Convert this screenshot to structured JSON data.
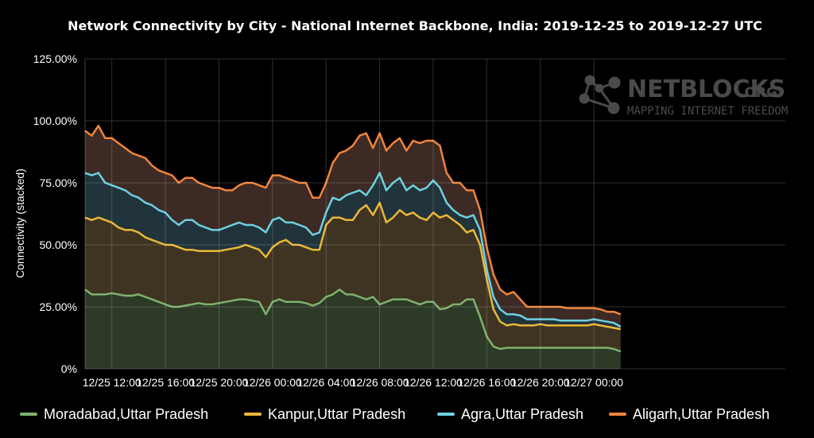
{
  "chart_data": {
    "type": "area",
    "stacked": true,
    "title": "Network Connectivity by City - National Internet Backbone, India: 2019-12-25 to 2019-12-27 UTC",
    "ylabel": "Connectivity (stacked)",
    "ylim": [
      0,
      125
    ],
    "y_ticks": [
      {
        "value": 0,
        "label": "0%"
      },
      {
        "value": 25,
        "label": "25.00%"
      },
      {
        "value": 50,
        "label": "50.00%"
      },
      {
        "value": 75,
        "label": "75.00%"
      },
      {
        "value": 100,
        "label": "100.00%"
      },
      {
        "value": 125,
        "label": "125.00%"
      }
    ],
    "x_unit": "hours since first sample (12/25 10:00 UTC)",
    "xlim": [
      0,
      52.3
    ],
    "x_ticks": [
      {
        "hour": 2,
        "label": "12/25 12:00"
      },
      {
        "hour": 6,
        "label": "12/25 16:00"
      },
      {
        "hour": 10,
        "label": "12/25 20:00"
      },
      {
        "hour": 14,
        "label": "12/26 00:00"
      },
      {
        "hour": 18,
        "label": "12/26 04:00"
      },
      {
        "hour": 22,
        "label": "12/26 08:00"
      },
      {
        "hour": 26,
        "label": "12/26 12:00"
      },
      {
        "hour": 30,
        "label": "12/26 16:00"
      },
      {
        "hour": 34,
        "label": "12/26 20:00"
      },
      {
        "hour": 38,
        "label": "12/27 00:00"
      }
    ],
    "grid": true,
    "legend_position": "bottom",
    "x": [
      0,
      0.5,
      1,
      1.5,
      2,
      2.5,
      3,
      3.5,
      4,
      4.5,
      5,
      5.5,
      6,
      6.5,
      7,
      7.5,
      8,
      8.5,
      9,
      9.5,
      10,
      10.5,
      11,
      11.5,
      12,
      12.5,
      13,
      13.5,
      14,
      14.5,
      15,
      15.5,
      16,
      16.5,
      17,
      17.5,
      18,
      18.5,
      19,
      19.5,
      20,
      20.5,
      21,
      21.5,
      22,
      22.5,
      23,
      23.5,
      24,
      24.5,
      25,
      25.5,
      26,
      26.5,
      27,
      27.5,
      28,
      28.5,
      29,
      29.5,
      30,
      30.5,
      31,
      31.5,
      32,
      32.5,
      33,
      33.5,
      34,
      34.5,
      35,
      35.5,
      36,
      36.5,
      37,
      37.5,
      38,
      38.5,
      39,
      39.5,
      40
    ],
    "series": [
      {
        "name": "Moradabad,Uttar Pradesh",
        "color": "#7eb26d",
        "fill": "#2c3a27",
        "cumulative": [
          32,
          30,
          30,
          30,
          30.5,
          30,
          29.5,
          29.5,
          30,
          29,
          28,
          27,
          26,
          25,
          25,
          25.5,
          26,
          26.5,
          26,
          26,
          26.5,
          27,
          27.5,
          28,
          28,
          27.5,
          27,
          22,
          27,
          28,
          27,
          27,
          27,
          26.5,
          25.5,
          26.5,
          29,
          30,
          32,
          30,
          30,
          29,
          28,
          29,
          26,
          27,
          28,
          28,
          28,
          27,
          26,
          27,
          27,
          24,
          24.5,
          26,
          26,
          28,
          28,
          21,
          13,
          9,
          8,
          8.5,
          8.5,
          8.5,
          8.5,
          8.5,
          8.5,
          8.5,
          8.5,
          8.5,
          8.5,
          8.5,
          8.5,
          8.5,
          8.5,
          8.5,
          8.5,
          8,
          7
        ]
      },
      {
        "name": "Kanpur,Uttar Pradesh",
        "color": "#eab839",
        "fill": "#3f3322",
        "cumulative": [
          61,
          60,
          61,
          60,
          59,
          57,
          56,
          56,
          55,
          53,
          52,
          51,
          50,
          50,
          49,
          48,
          48,
          47.5,
          47.5,
          47.5,
          47.5,
          48,
          48.5,
          49,
          50,
          49,
          48,
          45,
          49,
          51,
          52,
          50,
          50,
          49,
          48,
          48,
          58,
          61,
          61,
          60,
          60,
          64,
          66,
          62,
          67,
          59,
          61,
          64,
          62,
          63,
          61,
          60,
          63,
          61,
          62,
          60,
          58,
          55,
          56,
          50,
          36,
          24,
          19,
          17.5,
          18,
          17.5,
          17.5,
          17.5,
          18,
          17.5,
          17.5,
          17.5,
          17.5,
          17.5,
          17.5,
          17.5,
          18,
          17.5,
          17,
          16.5,
          16
        ]
      },
      {
        "name": "Agra,Uttar Pradesh",
        "color": "#6ed0e0",
        "fill": "#21333b",
        "cumulative": [
          79,
          78,
          79,
          75,
          74,
          73,
          72,
          70,
          69,
          67,
          66,
          64,
          63,
          60,
          58,
          60,
          60,
          58,
          57,
          56,
          56,
          57,
          58,
          59,
          58,
          58,
          57,
          55,
          60,
          61,
          59,
          59,
          58,
          57,
          54,
          55,
          63,
          69,
          68,
          70,
          71,
          72,
          70,
          74,
          79,
          72,
          75,
          77,
          72,
          74,
          72,
          73,
          76,
          73,
          67,
          64,
          62,
          61,
          62,
          56,
          40,
          29,
          24,
          22,
          22,
          21.5,
          20,
          20,
          20,
          20,
          20,
          19.5,
          19.5,
          19.5,
          19.5,
          19.5,
          20,
          19.5,
          19,
          18.5,
          17
        ]
      },
      {
        "name": "Aligarh,Uttar Pradesh",
        "color": "#ef843c",
        "fill": "#3d2a24",
        "cumulative": [
          96,
          94,
          98,
          93,
          93,
          91,
          89,
          87,
          86,
          85,
          82,
          80,
          79,
          78,
          75,
          77,
          77,
          75,
          74,
          73,
          73,
          72,
          72,
          74,
          75,
          75,
          74,
          73,
          78,
          78,
          77,
          76,
          75,
          75,
          69,
          69,
          75,
          83,
          87,
          88,
          90,
          94,
          95,
          89,
          95,
          88,
          91,
          93,
          88,
          92,
          91,
          92,
          92,
          90,
          79,
          75,
          75,
          72,
          72,
          64,
          49,
          38,
          32,
          30,
          31,
          28,
          25,
          25,
          25,
          25,
          25,
          25,
          24.5,
          24.5,
          24.5,
          24.5,
          24.5,
          24,
          23,
          23,
          22
        ]
      }
    ]
  },
  "watermark": {
    "brand": "NETBLOCKS",
    "tld": ".ORG",
    "tagline": "MAPPING INTERNET FREEDOM"
  }
}
